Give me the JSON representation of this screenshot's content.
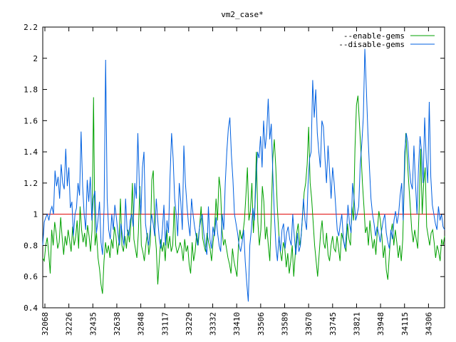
{
  "chart_data": {
    "type": "line",
    "title": "vm2_case*",
    "xlabel": "",
    "ylabel": "",
    "ylim": [
      0.4,
      2.2
    ],
    "yticks": [
      "0.4",
      "0.6",
      "0.8",
      "1",
      "1.2",
      "1.4",
      "1.6",
      "1.8",
      "2",
      "2.2"
    ],
    "xticks": [
      "32068",
      "32226",
      "32435",
      "32638",
      "32848",
      "33117",
      "33229",
      "33332",
      "33410",
      "33506",
      "33589",
      "33670",
      "33745",
      "33821",
      "33948",
      "34115",
      "34306"
    ],
    "reference_line": {
      "y": 1,
      "color": "#e00000"
    },
    "legend_position": "top-right",
    "grid": false,
    "series": [
      {
        "name": "--enable-gems",
        "color": "#00a000",
        "values": [
          0.72,
          0.7,
          0.8,
          0.85,
          0.75,
          0.62,
          0.9,
          0.8,
          0.95,
          0.88,
          0.78,
          0.82,
          0.98,
          0.85,
          0.74,
          0.86,
          0.8,
          0.9,
          0.83,
          0.76,
          0.92,
          0.8,
          0.85,
          0.96,
          0.78,
          1.05,
          0.9,
          0.82,
          0.88,
          0.79,
          0.93,
          0.86,
          0.76,
          0.9,
          1.75,
          0.8,
          0.88,
          0.72,
          0.65,
          0.55,
          0.49,
          0.7,
          0.82,
          0.75,
          0.8,
          0.72,
          0.84,
          0.78,
          0.92,
          0.86,
          0.74,
          0.82,
          1.1,
          0.8,
          0.76,
          0.86,
          0.78,
          0.9,
          0.82,
          0.94,
          1.2,
          0.84,
          0.78,
          0.72,
          0.88,
          1.18,
          0.8,
          0.76,
          0.7,
          0.8,
          0.88,
          0.74,
          0.82,
          1.22,
          1.28,
          0.9,
          0.78,
          0.55,
          0.7,
          0.84,
          0.76,
          0.82,
          0.7,
          0.9,
          0.78,
          0.86,
          0.76,
          0.8,
          1.05,
          0.8,
          0.75,
          0.78,
          0.82,
          0.78,
          0.7,
          0.84,
          0.76,
          0.8,
          0.68,
          0.62,
          0.82,
          0.7,
          0.76,
          0.88,
          0.8,
          0.92,
          1.05,
          0.85,
          0.8,
          0.76,
          0.88,
          0.82,
          0.78,
          0.7,
          0.82,
          0.9,
          1.1,
          0.96,
          1.24,
          1.16,
          0.9,
          0.8,
          0.84,
          0.78,
          0.72,
          0.68,
          0.62,
          0.78,
          0.7,
          0.65,
          0.6,
          0.8,
          0.9,
          0.84,
          0.88,
          0.96,
          1.12,
          1.3,
          0.96,
          1.02,
          1.2,
          0.88,
          1.05,
          1.4,
          0.95,
          0.8,
          0.9,
          1.18,
          1.08,
          0.84,
          0.92,
          0.8,
          0.7,
          1.0,
          1.36,
          1.48,
          1.3,
          1.05,
          0.88,
          0.76,
          0.7,
          0.82,
          0.78,
          0.66,
          0.75,
          0.62,
          0.7,
          0.8,
          0.6,
          0.74,
          0.88,
          0.94,
          0.8,
          0.86,
          1.0,
          1.14,
          1.2,
          1.32,
          1.56,
          1.2,
          1.1,
          0.95,
          0.8,
          0.7,
          0.6,
          0.74,
          0.88,
          0.96,
          0.82,
          0.78,
          0.88,
          0.74,
          0.7,
          0.8,
          0.86,
          0.78,
          0.76,
          0.86,
          0.78,
          0.7,
          0.88,
          0.84,
          0.8,
          0.76,
          0.94,
          0.84,
          0.8,
          1.05,
          0.96,
          1.42,
          1.7,
          1.76,
          1.58,
          1.4,
          1.2,
          1.05,
          0.88,
          0.92,
          0.8,
          0.96,
          0.86,
          0.78,
          0.84,
          0.74,
          0.9,
          1.02,
          0.96,
          0.86,
          0.72,
          0.8,
          0.64,
          0.58,
          0.74,
          0.88,
          0.94,
          0.8,
          0.9,
          0.82,
          0.72,
          0.8,
          0.7,
          0.84,
          1.2,
          1.52,
          1.36,
          1.2,
          1.05,
          0.9,
          0.82,
          0.9,
          0.84,
          0.78,
          1.05,
          1.42,
          1.0,
          1.2,
          1.3,
          0.92,
          0.86,
          0.8,
          0.88,
          0.9,
          0.82,
          0.72,
          0.8,
          0.76,
          0.7,
          0.84,
          0.8,
          0.86
        ]
      },
      {
        "name": "--disable-gems",
        "color": "#0060e0",
        "values": [
          0.8,
          0.95,
          0.98,
          1.0,
          0.96,
          1.02,
          1.05,
          1.0,
          1.28,
          1.18,
          1.24,
          1.1,
          1.32,
          1.2,
          1.16,
          1.42,
          1.18,
          1.3,
          1.04,
          1.08,
          0.86,
          1.0,
          1.04,
          1.2,
          1.12,
          1.53,
          1.18,
          1.0,
          0.9,
          1.22,
          1.08,
          1.24,
          0.96,
          1.1,
          1.15,
          0.88,
          0.96,
          1.08,
          0.82,
          0.74,
          1.05,
          1.99,
          1.1,
          0.9,
          0.84,
          1.0,
          0.9,
          1.06,
          0.98,
          0.88,
          0.8,
          0.94,
          0.86,
          0.8,
          1.1,
          0.9,
          0.86,
          0.96,
          1.0,
          0.92,
          1.2,
          1.1,
          1.52,
          1.18,
          1.0,
          1.3,
          1.4,
          0.94,
          0.86,
          0.8,
          0.9,
          1.0,
          0.94,
          0.86,
          1.1,
          0.96,
          0.84,
          0.78,
          0.9,
          1.06,
          0.8,
          0.96,
          0.88,
          1.24,
          1.52,
          1.36,
          1.1,
          1.0,
          0.86,
          1.2,
          1.08,
          0.9,
          1.44,
          1.2,
          1.06,
          0.94,
          0.86,
          1.1,
          1.0,
          0.92,
          0.86,
          0.8,
          0.9,
          0.96,
          1.0,
          0.88,
          0.8,
          0.74,
          1.05,
          0.84,
          0.78,
          0.92,
          0.86,
          0.98,
          0.88,
          0.8,
          0.76,
          1.0,
          0.9,
          1.2,
          1.4,
          1.55,
          1.62,
          1.38,
          1.22,
          1.0,
          0.94,
          0.88,
          0.8,
          0.76,
          0.82,
          0.9,
          0.7,
          0.56,
          0.44,
          0.8,
          0.9,
          1.04,
          0.96,
          1.2,
          1.4,
          1.36,
          1.5,
          1.3,
          1.6,
          1.42,
          1.52,
          1.74,
          1.48,
          1.58,
          1.26,
          1.0,
          0.8,
          0.7,
          0.86,
          0.76,
          0.9,
          0.94,
          0.78,
          0.88,
          0.92,
          0.84,
          0.8,
          1.0,
          0.86,
          0.74,
          0.88,
          0.76,
          0.8,
          0.94,
          1.1,
          0.96,
          0.9,
          1.2,
          1.36,
          1.4,
          1.86,
          1.62,
          1.8,
          1.52,
          1.4,
          1.3,
          1.6,
          1.56,
          1.36,
          1.2,
          1.44,
          1.28,
          1.1,
          1.3,
          1.2,
          1.05,
          0.9,
          0.86,
          0.94,
          1.0,
          0.84,
          0.78,
          0.88,
          1.06,
          0.94,
          0.88,
          1.2,
          1.1,
          0.96,
          1.0,
          1.05,
          1.32,
          1.45,
          1.62,
          2.06,
          1.8,
          1.52,
          1.3,
          1.1,
          1.0,
          0.94,
          0.86,
          0.92,
          0.88,
          0.82,
          0.9,
          0.96,
          1.0,
          0.88,
          0.82,
          0.78,
          0.9,
          0.84,
          0.96,
          1.02,
          0.94,
          1.0,
          1.12,
          1.2,
          0.96,
          1.4,
          1.52,
          1.46,
          1.3,
          1.2,
          1.16,
          1.44,
          1.2,
          1.0,
          1.3,
          1.5,
          1.4,
          1.2,
          1.62,
          1.36,
          1.2,
          1.72,
          1.24,
          1.06,
          1.0,
          0.94,
          0.9,
          1.05,
          0.96,
          1.0,
          0.92,
          0.9
        ]
      }
    ]
  }
}
